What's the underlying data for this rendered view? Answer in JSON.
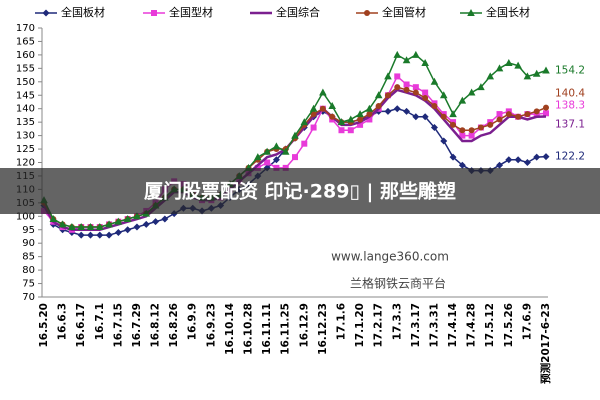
{
  "chart_data": {
    "type": "line",
    "categories": [
      "16.5.20",
      null,
      "16.6.3",
      null,
      "16.6.17",
      null,
      "16.7.1",
      null,
      "16.7.15",
      null,
      "16.7.29",
      null,
      "16.8.12",
      null,
      "16.8.26",
      null,
      "16.9.9",
      null,
      "16.9.23",
      null,
      "16.10.14",
      null,
      "16.10.28",
      null,
      "16.11.11",
      null,
      "16.11.25",
      null,
      "16.12.9",
      null,
      "16.12.23",
      null,
      "17.1.6",
      null,
      "17.1.20",
      null,
      "17.2.17",
      null,
      "17.3.3",
      null,
      "17.3.17",
      null,
      "17.3.31",
      null,
      "17.4.14",
      null,
      "17.4.28",
      null,
      "17.5.12",
      null,
      "17.5.26",
      null,
      "17.6.9",
      null,
      "预测2017-6-23"
    ],
    "series": [
      {
        "name": "全国板材",
        "color": "#1f2a7a",
        "marker": "diamond",
        "values": [
          104,
          97,
          95,
          94,
          93,
          93,
          93,
          93,
          94,
          95,
          96,
          97,
          98,
          99,
          101,
          103,
          103,
          102,
          103,
          104,
          107,
          110,
          112,
          115,
          118,
          121,
          125,
          129,
          133,
          137,
          139,
          137,
          135,
          135,
          136,
          137,
          139,
          139,
          140,
          139,
          137,
          137,
          133,
          128,
          122,
          119,
          117,
          117,
          117,
          119,
          121,
          121,
          120,
          122,
          122.2
        ]
      },
      {
        "name": "全国型材",
        "color": "#e83ad9",
        "marker": "square",
        "values": [
          102,
          98,
          96,
          95,
          96,
          96,
          96,
          97,
          98,
          99,
          100,
          102,
          105,
          110,
          113,
          112,
          108,
          106,
          106,
          107,
          110,
          113,
          116,
          118,
          120,
          118,
          118,
          122,
          127,
          133,
          140,
          136,
          132,
          132,
          134,
          136,
          140,
          145,
          152,
          149,
          148,
          146,
          142,
          138,
          135,
          130,
          130,
          133,
          135,
          138,
          139,
          137,
          138,
          138,
          138.3
        ]
      },
      {
        "name": "全国综合",
        "color": "#7b1f8f",
        "marker": "none",
        "values": [
          104,
          98,
          96,
          95,
          95,
          95,
          95,
          96,
          97,
          98,
          99,
          100,
          103,
          106,
          109,
          109,
          107,
          106,
          106,
          107,
          110,
          113,
          116,
          119,
          122,
          123,
          125,
          129,
          133,
          137,
          140,
          137,
          134,
          134,
          135,
          137,
          140,
          144,
          147,
          146,
          145,
          143,
          140,
          136,
          132,
          128,
          128,
          130,
          131,
          134,
          137,
          137,
          136,
          137,
          137.1
        ]
      },
      {
        "name": "全国管材",
        "color": "#a0401f",
        "marker": "circle",
        "values": [
          105,
          99,
          97,
          96,
          96,
          96,
          96,
          97,
          98,
          99,
          100,
          101,
          104,
          107,
          110,
          110,
          108,
          107,
          107,
          108,
          112,
          115,
          118,
          121,
          124,
          125,
          125,
          129,
          134,
          138,
          140,
          137,
          135,
          135,
          136,
          138,
          141,
          145,
          148,
          147,
          146,
          144,
          141,
          137,
          134,
          132,
          132,
          133,
          134,
          136,
          138,
          137,
          138,
          139,
          140.4
        ]
      },
      {
        "name": "全国长材",
        "color": "#1a7a2a",
        "marker": "triangle",
        "values": [
          106,
          99,
          97,
          96,
          96,
          96,
          96,
          97,
          98,
          99,
          100,
          101,
          104,
          107,
          110,
          110,
          108,
          107,
          107,
          108,
          112,
          115,
          118,
          122,
          124,
          126,
          124,
          130,
          135,
          140,
          146,
          141,
          135,
          136,
          138,
          140,
          145,
          152,
          160,
          158,
          160,
          157,
          150,
          145,
          138,
          143,
          146,
          148,
          152,
          155,
          157,
          156,
          152,
          153,
          154.2
        ]
      }
    ],
    "ylim": [
      70,
      170
    ],
    "yticks": [
      70,
      75,
      80,
      85,
      90,
      95,
      100,
      105,
      110,
      115,
      120,
      125,
      130,
      135,
      140,
      145,
      150,
      155,
      160,
      165,
      170
    ],
    "grid": false,
    "watermark": [
      "www.lange360.com",
      "兰格钢铁云商平台"
    ],
    "banner": "厦门股票配资 印记·289▯ | 那些雕塑"
  }
}
